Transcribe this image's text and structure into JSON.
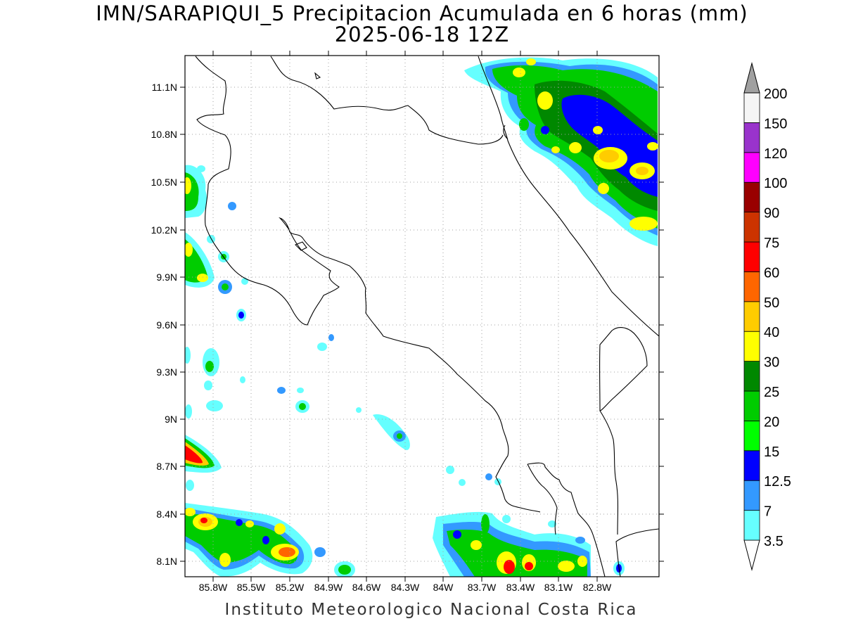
{
  "title": {
    "line1": "IMN/SARAPIQUI_5 Precipitacion Acumulada en 6 horas (mm)",
    "line2": "2025-06-18 12Z"
  },
  "axes": {
    "lat_labels": [
      "11.1N",
      "10.8N",
      "10.5N",
      "10.2N",
      "9.9N",
      "9.6N",
      "9.3N",
      "9N",
      "8.7N",
      "8.4N",
      "8.1N"
    ],
    "lon_labels": [
      "85.8W",
      "85.5W",
      "85.2W",
      "84.9W",
      "84.6W",
      "84.3W",
      "84W",
      "83.7W",
      "83.4W",
      "83.1W",
      "82.8W"
    ]
  },
  "colorbar": {
    "levels": [
      "3.5",
      "7",
      "12.5",
      "15",
      "20",
      "25",
      "30",
      "40",
      "50",
      "60",
      "75",
      "90",
      "100",
      "120",
      "150",
      "200"
    ],
    "colors": [
      "#66ffff",
      "#3399ff",
      "#0000ff",
      "#00ff00",
      "#00cc00",
      "#008800",
      "#ffff00",
      "#ffcc00",
      "#ff6600",
      "#ff0000",
      "#cc3300",
      "#990000",
      "#ff00ff",
      "#9933cc",
      "#f5f5f5",
      "#a0a0a0"
    ]
  },
  "footer": "Instituto Meteorologico Nacional Costa Rica"
}
